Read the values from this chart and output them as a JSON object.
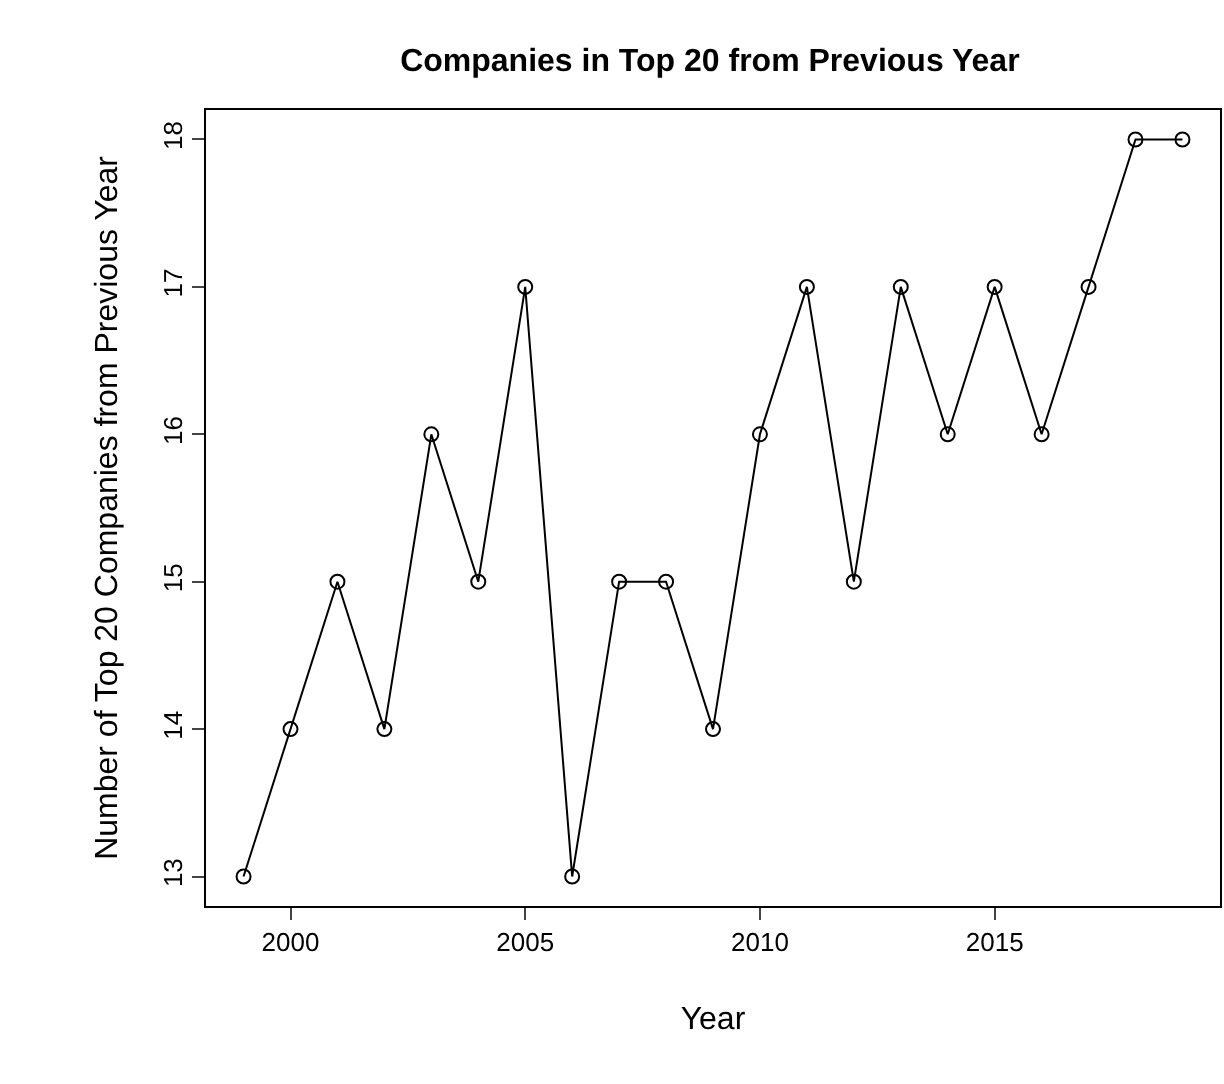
{
  "chart_data": {
    "type": "line",
    "title": "Companies in Top 20 from Previous Year",
    "xlabel": "Year",
    "ylabel": "Number of Top 20 Companies from Previous Year",
    "x": [
      1999,
      2000,
      2001,
      2002,
      2003,
      2004,
      2005,
      2006,
      2007,
      2008,
      2009,
      2010,
      2011,
      2012,
      2013,
      2014,
      2015,
      2016,
      2017,
      2018,
      2019
    ],
    "series": [
      {
        "color": "#000000",
        "values": [
          13,
          14,
          15,
          14,
          16,
          15,
          17,
          13,
          15,
          15,
          14,
          16,
          17,
          15,
          17,
          16,
          17,
          16,
          17,
          18,
          18
        ]
      }
    ],
    "xlim": [
      1998.2,
      2019.8
    ],
    "xticks": [
      2000,
      2005,
      2010,
      2015
    ],
    "ylim": [
      12.8,
      18.2
    ],
    "yticks": [
      13,
      14,
      15,
      16,
      17,
      18
    ],
    "marker": "circle",
    "line_style": "solid"
  }
}
